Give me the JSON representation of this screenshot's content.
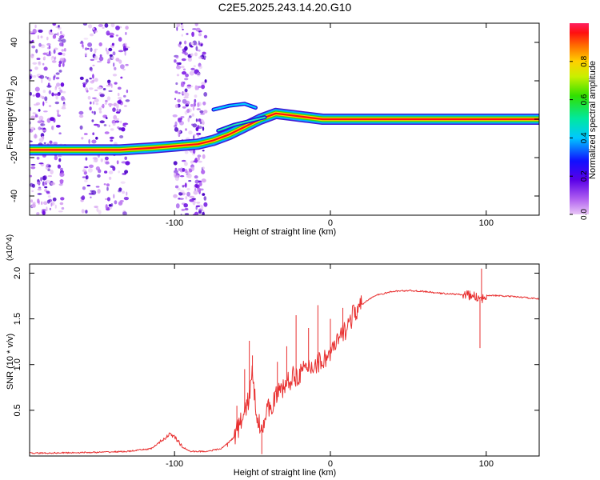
{
  "title": "C2E5.2025.243.14.20.G10",
  "chart_data": [
    {
      "type": "heatmap",
      "xlabel": "Height of straight line (km)",
      "ylabel": "Frequency (Hz)",
      "xlim": [
        -193,
        134
      ],
      "ylim": [
        -50,
        50
      ],
      "xticks": [
        -100,
        0,
        100
      ],
      "yticks": [
        -40,
        -20,
        0,
        20,
        40
      ],
      "colorbar": {
        "label": "Normalized spectral amplitude",
        "range": [
          0,
          1
        ],
        "ticks": [
          "0.0",
          "0.2",
          "0.4",
          "0.6",
          "0.8"
        ]
      },
      "ridge": [
        {
          "x": -193,
          "y": -16
        },
        {
          "x": -165,
          "y": -16
        },
        {
          "x": -135,
          "y": -16
        },
        {
          "x": -115,
          "y": -15
        },
        {
          "x": -100,
          "y": -14
        },
        {
          "x": -85,
          "y": -13
        },
        {
          "x": -75,
          "y": -11
        },
        {
          "x": -65,
          "y": -8
        },
        {
          "x": -55,
          "y": -4
        },
        {
          "x": -45,
          "y": 0
        },
        {
          "x": -35,
          "y": 3
        },
        {
          "x": -25,
          "y": 2
        },
        {
          "x": -15,
          "y": 1
        },
        {
          "x": -5,
          "y": 0
        },
        {
          "x": 0,
          "y": 0
        },
        {
          "x": 50,
          "y": 0
        },
        {
          "x": 134,
          "y": 0
        }
      ],
      "noise_bands": [
        [
          -193,
          -170
        ],
        [
          -160,
          -130
        ],
        [
          -100,
          -80
        ]
      ]
    },
    {
      "type": "line",
      "xlabel": "Height of straight line (km)",
      "ylabel": "SNR (10 * v/v)",
      "y_multiplier": "(x10^4)",
      "xlim": [
        -193,
        134
      ],
      "ylim": [
        0,
        2.1
      ],
      "xticks": [
        -100,
        0,
        100
      ],
      "yticks": [
        0.5,
        1.0,
        1.5,
        2.0
      ],
      "ytick_labels": [
        "0.5",
        "1.0",
        "1.5",
        "2.0"
      ],
      "color": "#e83030",
      "series": [
        {
          "x": [
            -193,
            -150,
            -130,
            -115,
            -108,
            -103,
            -100,
            -95,
            -90,
            -80,
            -70,
            -62,
            -56,
            -52,
            -50,
            -48,
            -45,
            -40,
            -35,
            -30,
            -25,
            -20,
            -15,
            -10,
            -5,
            0,
            5,
            10,
            15,
            20,
            25,
            30,
            40,
            50,
            60,
            70,
            80,
            88,
            94,
            97,
            100,
            110,
            120,
            134
          ],
          "y": [
            0.03,
            0.04,
            0.05,
            0.08,
            0.17,
            0.24,
            0.21,
            0.1,
            0.05,
            0.05,
            0.08,
            0.2,
            0.42,
            0.65,
            0.9,
            0.55,
            0.3,
            0.5,
            0.65,
            0.75,
            0.85,
            0.9,
            0.95,
            1.0,
            1.05,
            1.12,
            1.25,
            1.4,
            1.55,
            1.65,
            1.72,
            1.76,
            1.8,
            1.81,
            1.8,
            1.78,
            1.77,
            1.76,
            1.74,
            1.7,
            1.76,
            1.75,
            1.74,
            1.72
          ],
          "spikes": [
            {
              "x": -66,
              "y": 0.1
            },
            {
              "x": -60,
              "y": 0.55
            },
            {
              "x": -55,
              "y": 0.95
            },
            {
              "x": -52,
              "y": 1.26
            },
            {
              "x": -50,
              "y": 1.1
            },
            {
              "x": -44,
              "y": 0.02
            },
            {
              "x": -34,
              "y": 1.03
            },
            {
              "x": -28,
              "y": 1.2
            },
            {
              "x": -22,
              "y": 1.54
            },
            {
              "x": -14,
              "y": 1.4
            },
            {
              "x": -8,
              "y": 1.65
            },
            {
              "x": 0,
              "y": 1.5
            },
            {
              "x": 8,
              "y": 1.62
            },
            {
              "x": 96,
              "y": 1.18
            },
            {
              "x": 97,
              "y": 2.05
            }
          ]
        }
      ]
    }
  ]
}
